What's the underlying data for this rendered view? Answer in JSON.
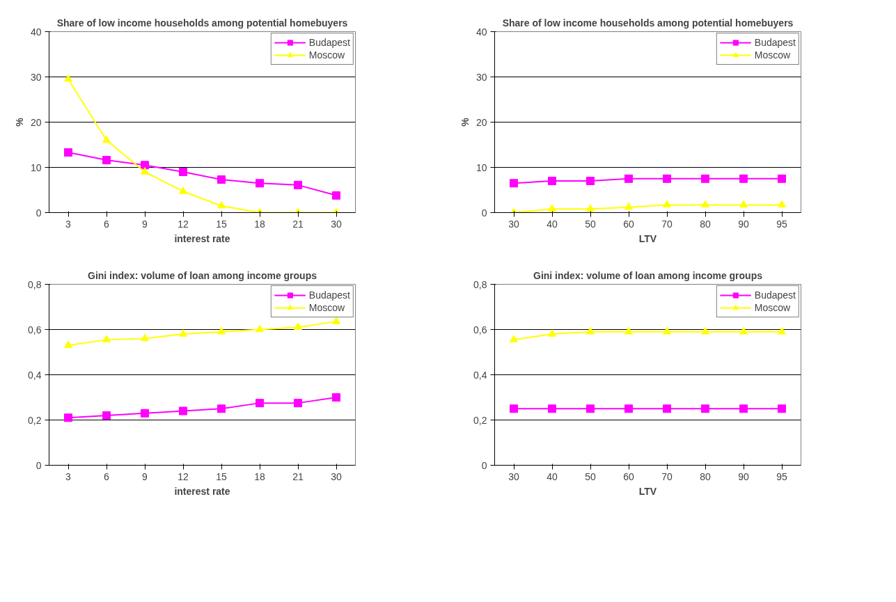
{
  "chart_data": [
    {
      "type": "line",
      "title": "Share of low income households among potential homebuyers",
      "xlabel": "interest rate",
      "ylabel": "%",
      "categories": [
        "3",
        "6",
        "9",
        "12",
        "15",
        "18",
        "21",
        "30"
      ],
      "ylim": [
        0,
        40
      ],
      "yticks": [
        0,
        10,
        20,
        30,
        40
      ],
      "grid": "y",
      "legend": "top right",
      "series": [
        {
          "name": "Budapest",
          "color": "#ff00ff",
          "marker": "square",
          "values": [
            13.3,
            11.6,
            10.5,
            9,
            7.3,
            6.5,
            6.1,
            3.8
          ]
        },
        {
          "name": "Moscow",
          "color": "#ffff00",
          "marker": "triangle",
          "values": [
            29.5,
            16,
            9,
            4.7,
            1.5,
            0,
            0,
            0
          ]
        }
      ]
    },
    {
      "type": "line",
      "title": "Share of low income households among potential homebuyers",
      "xlabel": "LTV",
      "ylabel": "%",
      "categories": [
        "30",
        "40",
        "50",
        "60",
        "70",
        "80",
        "90",
        "95"
      ],
      "ylim": [
        0,
        40
      ],
      "yticks": [
        0,
        10,
        20,
        30,
        40
      ],
      "grid": "y",
      "legend": "top right",
      "series": [
        {
          "name": "Budapest",
          "color": "#ff00ff",
          "marker": "square",
          "values": [
            6.5,
            7,
            7,
            7.5,
            7.5,
            7.5,
            7.5,
            7.5
          ]
        },
        {
          "name": "Moscow",
          "color": "#ffff00",
          "marker": "triangle",
          "values": [
            0,
            0.8,
            0.8,
            1.2,
            1.7,
            1.7,
            1.7,
            1.7
          ]
        }
      ]
    },
    {
      "type": "line",
      "title": "Gini index: volume of loan among income groups",
      "xlabel": "interest rate",
      "categories": [
        "3",
        "6",
        "9",
        "12",
        "15",
        "18",
        "21",
        "30"
      ],
      "ylim": [
        0,
        0.8
      ],
      "yticks": [
        0,
        {
          "value": 0.2,
          "label": "0,2"
        },
        {
          "value": 0.4,
          "label": "0,4"
        },
        {
          "value": 0.6,
          "label": "0,6"
        },
        {
          "value": 0.8,
          "label": "0,8"
        }
      ],
      "grid": "y",
      "legend": "top right",
      "series": [
        {
          "name": "Budapest",
          "color": "#ff00ff",
          "marker": "square",
          "values": [
            0.21,
            0.22,
            0.23,
            0.24,
            0.25,
            0.275,
            0.275,
            0.3
          ]
        },
        {
          "name": "Moscow",
          "color": "#ffff00",
          "marker": "triangle",
          "values": [
            0.53,
            0.555,
            0.56,
            0.58,
            0.59,
            0.6,
            0.61,
            0.635
          ]
        }
      ]
    },
    {
      "type": "line",
      "title": "Gini index: volume of loan among income groups",
      "xlabel": "LTV",
      "categories": [
        "30",
        "40",
        "50",
        "60",
        "70",
        "80",
        "90",
        "95"
      ],
      "ylim": [
        0,
        0.8
      ],
      "yticks": [
        0,
        {
          "value": 0.2,
          "label": "0,2"
        },
        {
          "value": 0.4,
          "label": "0,4"
        },
        {
          "value": 0.6,
          "label": "0,6"
        },
        {
          "value": 0.8,
          "label": "0,8"
        }
      ],
      "grid": "y",
      "legend": "top right",
      "series": [
        {
          "name": "Budapest",
          "color": "#ff00ff",
          "marker": "square",
          "values": [
            0.25,
            0.25,
            0.25,
            0.25,
            0.25,
            0.25,
            0.25,
            0.25
          ]
        },
        {
          "name": "Moscow",
          "color": "#ffff00",
          "marker": "triangle",
          "values": [
            0.555,
            0.58,
            0.59,
            0.59,
            0.59,
            0.59,
            0.59,
            0.59
          ]
        }
      ]
    }
  ]
}
